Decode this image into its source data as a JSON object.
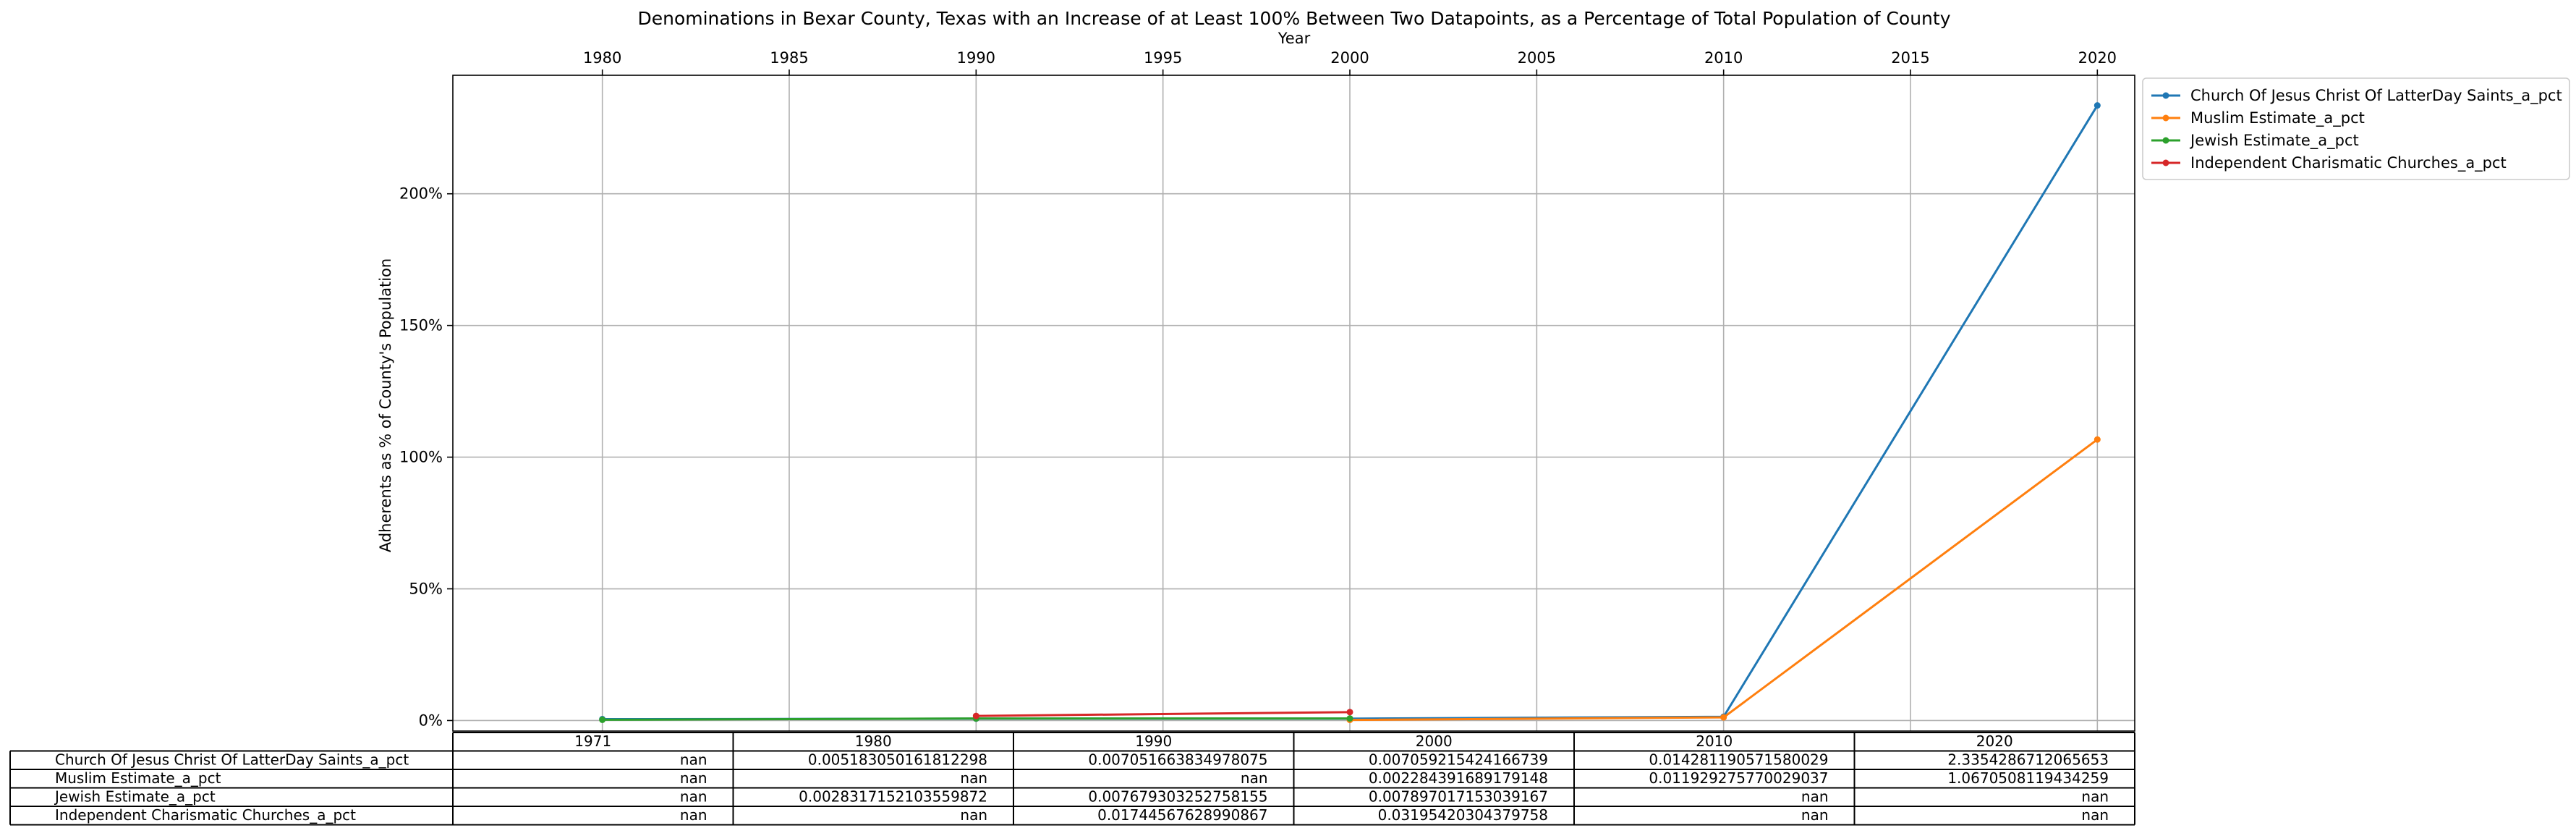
{
  "chart_data": {
    "type": "line",
    "title": "Denominations in Bexar County, Texas with an Increase of at Least 100% Between Two Datapoints, as a Percentage of Total Population of County",
    "xlabel": "Year",
    "ylabel": "Adherents as % of County's Population",
    "xlim": [
      1976,
      2021
    ],
    "ylim": [
      -4,
      245
    ],
    "x_ticks": [
      1980,
      1985,
      1990,
      1995,
      2000,
      2005,
      2010,
      2015,
      2020
    ],
    "y_ticks": [
      0,
      50,
      100,
      150,
      200
    ],
    "y_tick_format": "percent",
    "grid": true,
    "legend_position": "outside-upper-right",
    "colors": [
      "#1f77b4",
      "#ff7f0e",
      "#2ca02c",
      "#d62728"
    ],
    "series": [
      {
        "name": "Church Of Jesus Christ Of LatterDay Saints_a_pct",
        "points": [
          [
            1980,
            0.5183
          ],
          [
            1990,
            0.7052
          ],
          [
            2000,
            0.7059
          ],
          [
            2010,
            1.4281
          ],
          [
            2020,
            233.5429
          ]
        ]
      },
      {
        "name": "Muslim Estimate_a_pct",
        "points": [
          [
            2000,
            0.2284
          ],
          [
            2010,
            1.1929
          ],
          [
            2020,
            106.7051
          ]
        ]
      },
      {
        "name": "Jewish Estimate_a_pct",
        "points": [
          [
            1980,
            0.2832
          ],
          [
            1990,
            0.7679
          ],
          [
            2000,
            0.7897
          ]
        ]
      },
      {
        "name": "Independent Charismatic Churches_a_pct",
        "points": [
          [
            1990,
            1.7446
          ],
          [
            2000,
            3.1954
          ]
        ]
      }
    ],
    "table": {
      "columns": [
        "1971",
        "1980",
        "1990",
        "2000",
        "2010",
        "2020"
      ],
      "rows": [
        {
          "label": "Church Of Jesus Christ Of LatterDay Saints_a_pct",
          "cells": [
            "nan",
            "0.005183050161812298",
            "0.007051663834978075",
            "0.007059215424166739",
            "0.014281190571580029",
            "2.3354286712065653"
          ]
        },
        {
          "label": "Muslim Estimate_a_pct",
          "cells": [
            "nan",
            "nan",
            "nan",
            "0.002284391689179148",
            "0.011929275770029037",
            "1.0670508119434259"
          ]
        },
        {
          "label": "Jewish Estimate_a_pct",
          "cells": [
            "nan",
            "0.0028317152103559872",
            "0.007679303252758155",
            "0.007897017153039167",
            "nan",
            "nan"
          ]
        },
        {
          "label": "Independent Charismatic Churches_a_pct",
          "cells": [
            "nan",
            "nan",
            "0.01744567628990867",
            "0.03195420304379758",
            "nan",
            "nan"
          ]
        }
      ]
    }
  }
}
